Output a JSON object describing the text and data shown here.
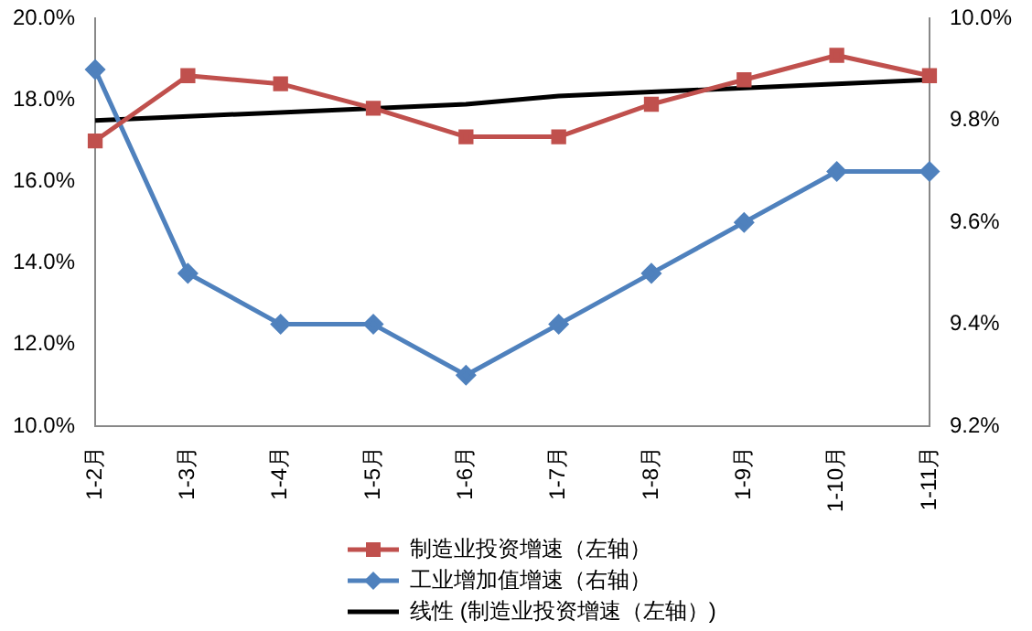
{
  "chart_data": {
    "type": "line",
    "categories": [
      "1-2月",
      "1-3月",
      "1-4月",
      "1-5月",
      "1-6月",
      "1-7月",
      "1-8月",
      "1-9月",
      "1-10月",
      "1-11月"
    ],
    "series": [
      {
        "name": "制造业投资增速（左轴）",
        "color": "#c0504d",
        "marker": "square",
        "values": [
          17.0,
          18.6,
          18.4,
          17.8,
          17.1,
          17.1,
          17.9,
          18.5,
          19.1,
          18.6
        ]
      },
      {
        "name": "工业增加值增速（右轴）",
        "color": "#4f81bd",
        "marker": "diamond",
        "axis": "y2",
        "values": [
          9.9,
          9.5,
          9.4,
          9.4,
          9.3,
          9.4,
          9.5,
          9.6,
          9.7,
          9.7
        ]
      },
      {
        "name": "线性 (制造业投资增速（左轴）)",
        "color": "#000000",
        "marker": "none",
        "values": [
          17.5,
          17.6,
          17.7,
          17.8,
          17.9,
          18.1,
          18.2,
          18.3,
          18.4,
          18.5
        ]
      }
    ],
    "ylim": [
      10,
      20
    ],
    "yticks": [
      {
        "value": 10,
        "label": "10.0%"
      },
      {
        "value": 12,
        "label": "12.0%"
      },
      {
        "value": 14,
        "label": "14.0%"
      },
      {
        "value": 16,
        "label": "16.0%"
      },
      {
        "value": 18,
        "label": "18.0%"
      },
      {
        "value": 20,
        "label": "20.0%"
      }
    ],
    "y2lim": [
      9.2,
      10.0
    ],
    "y2ticks": [
      {
        "value": 9.2,
        "label": "9.2%"
      },
      {
        "value": 9.4,
        "label": "9.4%"
      },
      {
        "value": 9.6,
        "label": "9.6%"
      },
      {
        "value": 9.8,
        "label": "9.8%"
      },
      {
        "value": 10.0,
        "label": "10.0%"
      }
    ],
    "legend": "bottom",
    "grid": false
  }
}
